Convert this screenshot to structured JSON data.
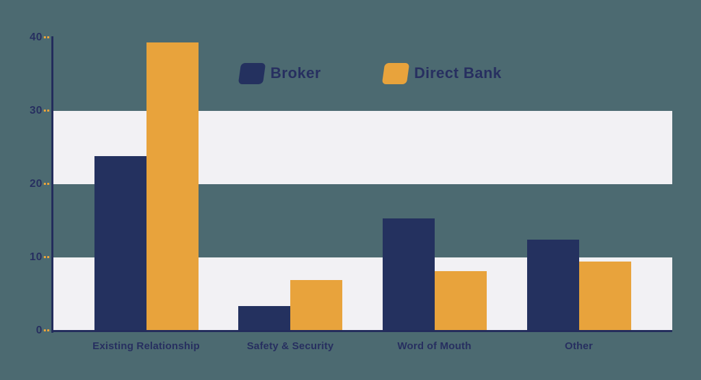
{
  "chart_data": {
    "type": "bar",
    "title": "",
    "categories": [
      "Existing Relationship",
      "Safety & Security",
      "Word of Mouth",
      "Other"
    ],
    "series": [
      {
        "name": "Broker",
        "color": "#24315f",
        "values": [
          23.8,
          3.4,
          15.3,
          12.4
        ]
      },
      {
        "name": "Direct Bank",
        "color": "#e8a33c",
        "values": [
          39.3,
          6.9,
          8.1,
          9.4
        ]
      }
    ],
    "xlabel": "",
    "ylabel": "",
    "ylim": [
      0,
      40
    ],
    "yticks": [
      0,
      10,
      20,
      30,
      40
    ],
    "bands": [
      [
        0,
        10
      ],
      [
        20,
        30
      ]
    ],
    "grid": "alternating-horizontal-bands",
    "legend_position": "top-center"
  },
  "colors": {
    "background": "#4c6a71",
    "band": "#f2f1f4",
    "axis": "#232c5c",
    "text": "#272f60",
    "tick": "#e8a33c"
  }
}
